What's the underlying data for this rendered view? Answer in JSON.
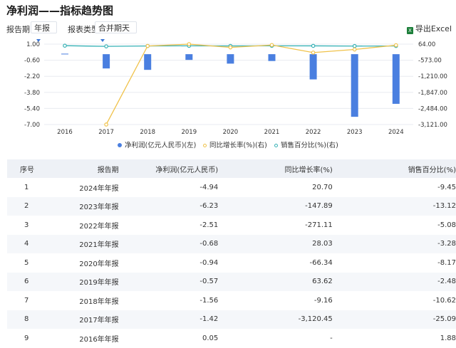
{
  "title": "净利润——指标趋势图",
  "toolbar": {
    "period_label": "报告期",
    "period_value": "年报",
    "report_type_label": "报表类型",
    "report_type_value": "合并期天",
    "export_label": "导出Excel"
  },
  "chart_data": {
    "type": "bar+line",
    "categories": [
      "2016",
      "2017",
      "2018",
      "2019",
      "2020",
      "2021",
      "2022",
      "2023",
      "2024"
    ],
    "left_axis": {
      "ticks": [
        "1.00",
        "-0.60",
        "-2.20",
        "-3.80",
        "-5.40",
        "-7.00"
      ],
      "range": [
        -7.0,
        1.0
      ]
    },
    "right_axis": {
      "ticks": [
        "64.00",
        "-573.00",
        "-1,210.00",
        "-1,847.00",
        "-2,484.00",
        "-3,121.00"
      ],
      "range": [
        -3121,
        64
      ]
    },
    "series": [
      {
        "name": "净利润(亿元人民币)(左)",
        "type": "bar",
        "axis": "left",
        "color": "#4a7fe0",
        "values": [
          0.05,
          -1.42,
          -1.56,
          -0.57,
          -0.94,
          -0.68,
          -2.51,
          -6.23,
          -4.94
        ]
      },
      {
        "name": "同比增长率(%)(右)",
        "type": "line",
        "axis": "right",
        "color": "#f0c24a",
        "values": [
          null,
          -3120.45,
          -9.16,
          63.62,
          -66.34,
          28.03,
          -271.11,
          -147.89,
          20.7
        ]
      },
      {
        "name": "销售百分比(%)(右)",
        "type": "line",
        "axis": "right",
        "color": "#35b1b5",
        "values": [
          1.88,
          -25.09,
          -10.62,
          -2.48,
          -8.17,
          -3.28,
          -5.08,
          -13.12,
          -9.45
        ]
      }
    ]
  },
  "table": {
    "headers": [
      "序号",
      "报告期",
      "净利润(亿元人民币)",
      "同比增长率(%)",
      "销售百分比(%)"
    ],
    "rows": [
      [
        "1",
        "2024年年报",
        "-4.94",
        "20.70",
        "-9.45"
      ],
      [
        "2",
        "2023年年报",
        "-6.23",
        "-147.89",
        "-13.12"
      ],
      [
        "3",
        "2022年年报",
        "-2.51",
        "-271.11",
        "-5.08"
      ],
      [
        "4",
        "2021年年报",
        "-0.68",
        "28.03",
        "-3.28"
      ],
      [
        "5",
        "2020年年报",
        "-0.94",
        "-66.34",
        "-8.17"
      ],
      [
        "6",
        "2019年年报",
        "-0.57",
        "63.62",
        "-2.48"
      ],
      [
        "7",
        "2018年年报",
        "-1.56",
        "-9.16",
        "-10.62"
      ],
      [
        "8",
        "2017年年报",
        "-1.42",
        "-3,120.45",
        "-25.09"
      ],
      [
        "9",
        "2016年年报",
        "0.05",
        "-",
        "1.88"
      ]
    ]
  }
}
